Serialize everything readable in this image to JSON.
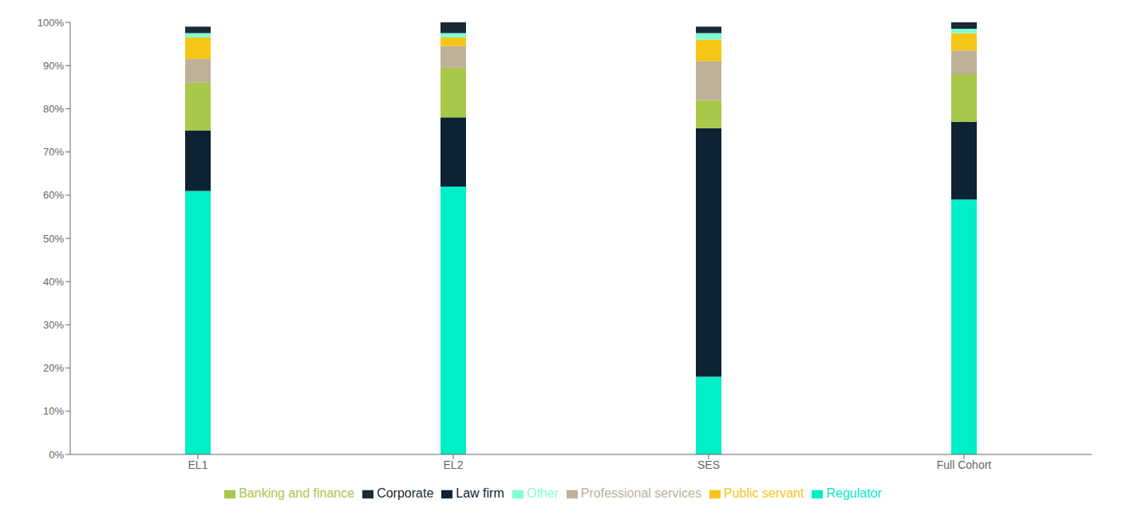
{
  "chart_data": {
    "type": "bar",
    "stacked": true,
    "categories": [
      "EL1",
      "EL2",
      "SES",
      "Full Cohort"
    ],
    "series": [
      {
        "name": "Regulator",
        "color": "#00EEC8",
        "values": [
          0.61,
          0.62,
          0.18,
          0.59
        ]
      },
      {
        "name": "Law firm",
        "color": "#0D2233",
        "values": [
          0.14,
          0.16,
          0.575,
          0.18
        ]
      },
      {
        "name": "Banking and finance",
        "color": "#A8C84A",
        "values": [
          0.11,
          0.115,
          0.065,
          0.11
        ]
      },
      {
        "name": "Professional services",
        "color": "#BFB09A",
        "values": [
          0.055,
          0.05,
          0.09,
          0.055
        ]
      },
      {
        "name": "Public servant",
        "color": "#F5C518",
        "values": [
          0.05,
          0.02,
          0.05,
          0.04
        ]
      },
      {
        "name": "Other",
        "color": "#7FFFD4",
        "values": [
          0.01,
          0.01,
          0.015,
          0.01
        ]
      },
      {
        "name": "Corporate",
        "color": "#1A2B35",
        "values": [
          0.015,
          0.025,
          0.015,
          0.015
        ]
      }
    ],
    "ylim": [
      0,
      1.0
    ],
    "yticks": [
      {
        "value": 0.0,
        "label": "0%"
      },
      {
        "value": 0.1,
        "label": "10%"
      },
      {
        "value": 0.2,
        "label": "20%"
      },
      {
        "value": 0.3,
        "label": "30%"
      },
      {
        "value": 0.4,
        "label": "40%"
      },
      {
        "value": 0.5,
        "label": "50%"
      },
      {
        "value": 0.6,
        "label": "60%"
      },
      {
        "value": 0.7,
        "label": "70%"
      },
      {
        "value": 0.8,
        "label": "80%"
      },
      {
        "value": 0.9,
        "label": "90%"
      },
      {
        "value": 1.0,
        "label": "100%"
      }
    ],
    "grid": false,
    "legend": "bottom"
  }
}
